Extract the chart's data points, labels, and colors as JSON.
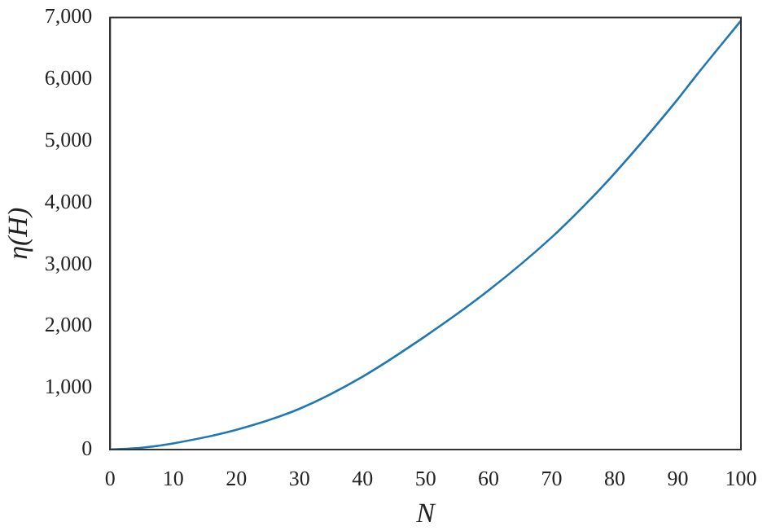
{
  "chart_data": {
    "type": "line",
    "xlabel": "N",
    "ylabel": "η(H)",
    "x": [
      0,
      5,
      10,
      20,
      30,
      40,
      50,
      60,
      70,
      75.6,
      80,
      84.7,
      90,
      92.6,
      100
    ],
    "series": [
      {
        "color": "#1f77b4",
        "values": [
          0,
          30,
          100,
          320,
          660,
          1180,
          1840,
          2580,
          3440,
          4000,
          4480,
          5030,
          5680,
          6020,
          6950
        ]
      }
    ],
    "xlim": [
      0,
      100
    ],
    "xticks": [
      0,
      10,
      20,
      30,
      40,
      50,
      60,
      70,
      80,
      90,
      100
    ],
    "ylim": [
      0,
      7000
    ],
    "yticks": [
      {
        "value": 0,
        "label": "0"
      },
      {
        "value": 1000,
        "label": "1,000"
      },
      {
        "value": 2000,
        "label": "2,000"
      },
      {
        "value": 3000,
        "label": "3,000"
      },
      {
        "value": 4000,
        "label": "4,000"
      },
      {
        "value": 5000,
        "label": "5,000"
      },
      {
        "value": 6000,
        "label": "6,000"
      },
      {
        "value": 7000,
        "label": "7,000"
      }
    ],
    "grid": false,
    "legend": false,
    "marker": "none",
    "line_style": "solid"
  }
}
